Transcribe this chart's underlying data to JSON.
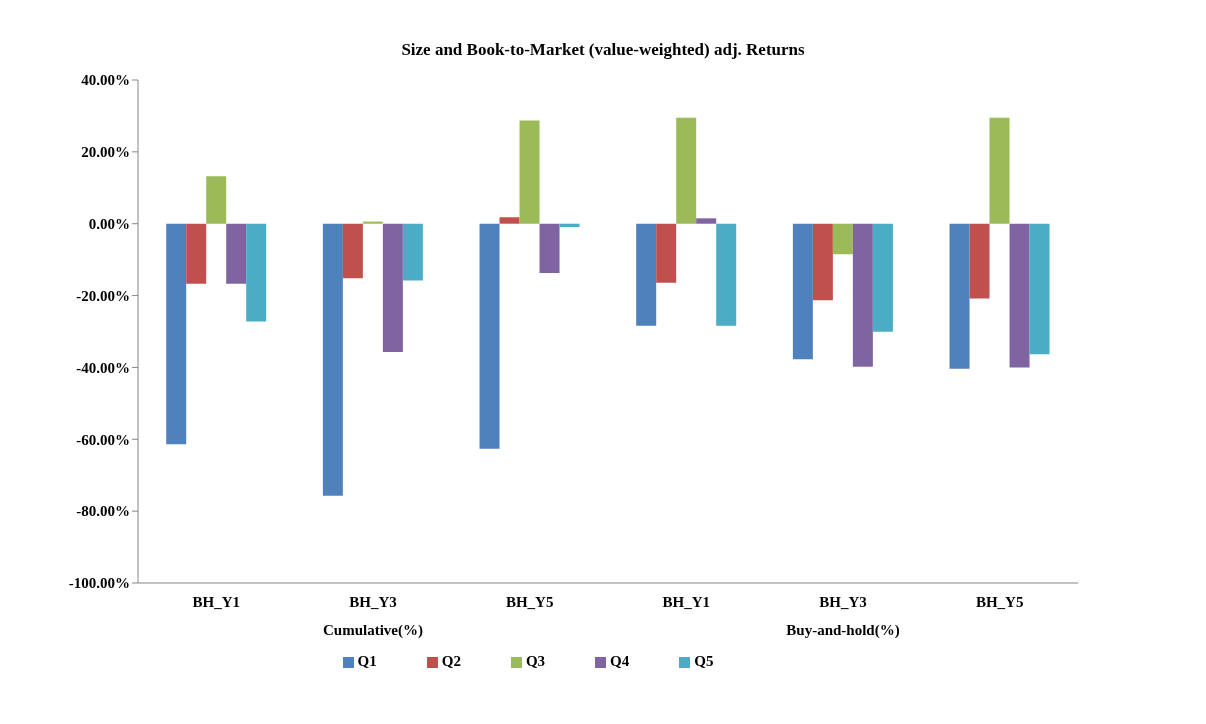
{
  "chart_data": {
    "type": "bar",
    "title": "Size and Book-to-Market (value-weighted) adj. Returns",
    "categories": [
      "BH_Y1",
      "BH_Y3",
      "BH_Y5",
      "BH_Y1",
      "BH_Y3",
      "BH_Y5"
    ],
    "series": [
      {
        "name": "Q1",
        "color": "#4f81bd",
        "values": [
          -61.4,
          -75.7,
          -62.6,
          -28.4,
          -37.7,
          -40.4
        ]
      },
      {
        "name": "Q2",
        "color": "#c0504d",
        "values": [
          -16.7,
          -15.2,
          1.8,
          -16.4,
          -21.3,
          -20.8
        ]
      },
      {
        "name": "Q3",
        "color": "#9bbb59",
        "values": [
          13.2,
          0.6,
          28.7,
          29.5,
          -8.5,
          29.5
        ]
      },
      {
        "name": "Q4",
        "color": "#8064a2",
        "values": [
          -16.7,
          -35.7,
          -13.7,
          1.5,
          -39.8,
          -40
        ]
      },
      {
        "name": "Q5",
        "color": "#4bacc6",
        "values": [
          -27.2,
          -15.8,
          -0.9,
          -28.4,
          -30.1,
          -36.3
        ]
      }
    ],
    "annotations": [
      "Cumulative(%)",
      "Buy-and-hold(%)"
    ],
    "ylim": [
      -100,
      40
    ],
    "yticks": [
      {
        "value": 40,
        "label": "40.00%"
      },
      {
        "value": 20,
        "label": "20.00%"
      },
      {
        "value": 0,
        "label": "0.00%"
      },
      {
        "value": -20,
        "label": "-20.00%"
      },
      {
        "value": -40,
        "label": "-40.00%"
      },
      {
        "value": -60,
        "label": "-60.00%"
      },
      {
        "value": -80,
        "label": "-80.00%"
      },
      {
        "value": -100,
        "label": "-100.00%"
      }
    ],
    "grid": false,
    "legend": "bottom"
  }
}
